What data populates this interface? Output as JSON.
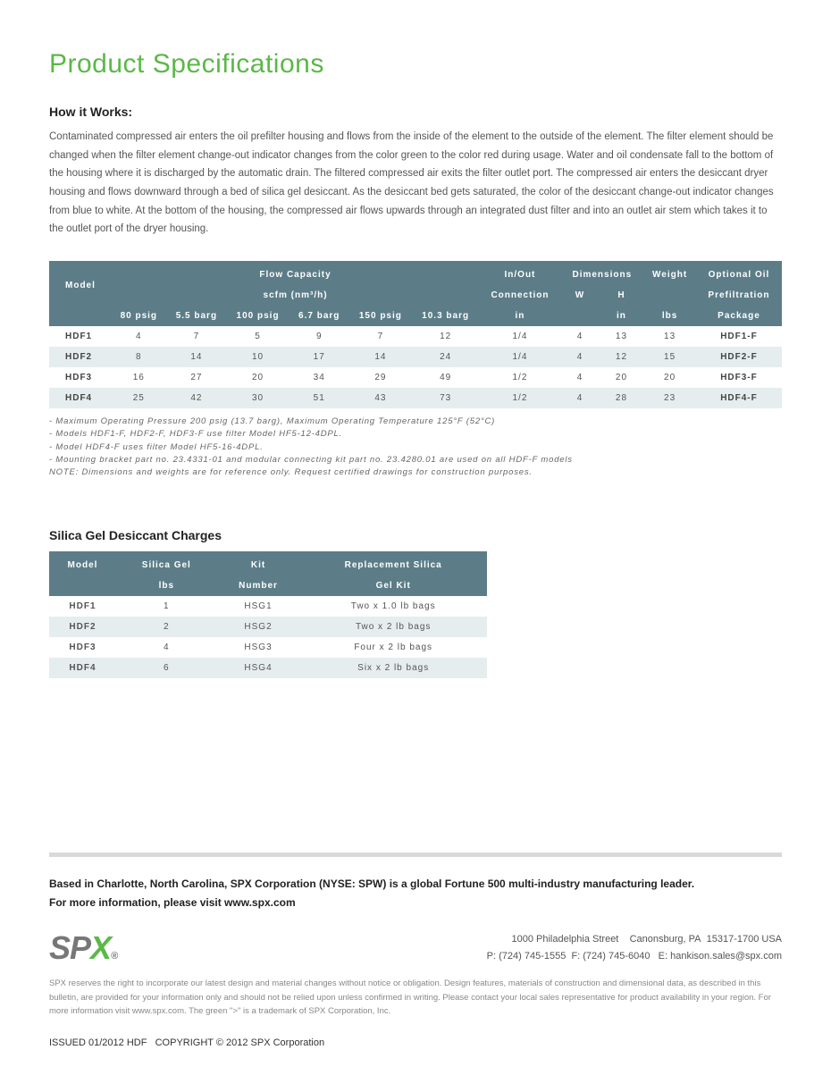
{
  "page_title": "Product Specifications",
  "how_it_works": {
    "heading": "How it Works:",
    "body": "Contaminated compressed air enters the oil prefilter housing and flows from the inside of the element to the outside of the element. The filter element should be changed when the filter element change-out indicator changes from the color green to the color red during usage. Water and oil condensate fall to the bottom of the housing where it is discharged by the automatic drain. The filtered compressed air exits the filter outlet port. The compressed air enters the desiccant dryer housing and flows downward through a bed of silica gel desiccant. As the desiccant bed gets saturated, the color of the desiccant change-out indicator changes from blue to white. At the bottom of the housing, the compressed air flows upwards through an integrated dust filter and into an outlet air stem which takes it to the outlet port of the dryer housing."
  },
  "spec_table": {
    "colors": {
      "header_bg": "#5c7d88",
      "row_odd": "#ffffff",
      "row_even": "#e6edee"
    },
    "hdr1": {
      "model": "Model",
      "flow": "Flow Capacity",
      "inout": "In/Out",
      "dims": "Dimensions",
      "weight": "Weight",
      "opt": "Optional Oil"
    },
    "hdr2": {
      "scfm": "scfm (nm³/h)",
      "conn": "Connection",
      "w": "W",
      "h": "H",
      "pref": "Prefiltration"
    },
    "hdr3": {
      "c1": "80 psig",
      "c2": "5.5 barg",
      "c3": "100 psig",
      "c4": "6.7 barg",
      "c5": "150 psig",
      "c6": "10.3 barg",
      "c7": "in",
      "c8": "in",
      "c9": "lbs",
      "c10": "Package"
    },
    "rows": [
      {
        "model": "HDF1",
        "v": [
          "4",
          "7",
          "5",
          "9",
          "7",
          "12",
          "1/4",
          "4",
          "13",
          "13"
        ],
        "pkg": "HDF1-F"
      },
      {
        "model": "HDF2",
        "v": [
          "8",
          "14",
          "10",
          "17",
          "14",
          "24",
          "1/4",
          "4",
          "12",
          "15"
        ],
        "pkg": "HDF2-F"
      },
      {
        "model": "HDF3",
        "v": [
          "16",
          "27",
          "20",
          "34",
          "29",
          "49",
          "1/2",
          "4",
          "20",
          "20"
        ],
        "pkg": "HDF3-F"
      },
      {
        "model": "HDF4",
        "v": [
          "25",
          "42",
          "30",
          "51",
          "43",
          "73",
          "1/2",
          "4",
          "28",
          "23"
        ],
        "pkg": "HDF4-F"
      }
    ]
  },
  "spec_notes": [
    "- Maximum Operating Pressure 200 psig (13.7 barg), Maximum Operating Temperature 125°F (52°C)",
    "- Models HDF1-F, HDF2-F, HDF3-F use filter Model HF5-12-4DPL.",
    "- Model HDF4-F uses filter Model HF5-16-4DPL.",
    "- Mounting bracket part no. 23.4331-01 and modular connecting kit part no. 23.4280.01 are used on all HDF-F models",
    "NOTE: Dimensions and weights are for reference only. Request certified drawings for construction purposes."
  ],
  "silica": {
    "heading": "Silica Gel Desiccant Charges",
    "hdr1": {
      "model": "Model",
      "gel": "Silica Gel",
      "kit": "Kit",
      "rep": "Replacement Silica"
    },
    "hdr2": {
      "lbs": "lbs",
      "num": "Number",
      "gelkit": "Gel Kit"
    },
    "rows": [
      {
        "model": "HDF1",
        "lbs": "1",
        "kit": "HSG1",
        "rep": "Two x 1.0 lb bags"
      },
      {
        "model": "HDF2",
        "lbs": "2",
        "kit": "HSG2",
        "rep": "Two x 2 lb bags"
      },
      {
        "model": "HDF3",
        "lbs": "4",
        "kit": "HSG3",
        "rep": "Four x 2 lb bags"
      },
      {
        "model": "HDF4",
        "lbs": "6",
        "kit": "HSG4",
        "rep": "Six x 2 lb bags"
      }
    ]
  },
  "footer": {
    "corp1": "Based in Charlotte, North Carolina, SPX Corporation (NYSE: SPW) is a global Fortune 500 multi-industry manufacturing leader.",
    "corp2": "For more information, please visit www.spx.com",
    "logo_s": "SP",
    "logo_x": "X",
    "addr1": "1000 Philadelphia Street    Canonsburg, PA  15317-1700 USA",
    "addr2": "P: (724) 745-1555  F: (724) 745-6040   E: hankison.sales@spx.com",
    "fine": "SPX reserves the right to incorporate our latest design and material changes without notice or obligation.  Design features, materials of construction and dimensional data, as described in this bulletin, are provided for your information only and should not be relied upon unless confirmed in writing. Please contact your local sales representative for product availability in your region. For more information visit www.spx.com.  The green \">\" is a trademark of SPX Corporation, Inc.",
    "issued": "ISSUED 01/2012 HDF   COPYRIGHT © 2012 SPX Corporation"
  }
}
